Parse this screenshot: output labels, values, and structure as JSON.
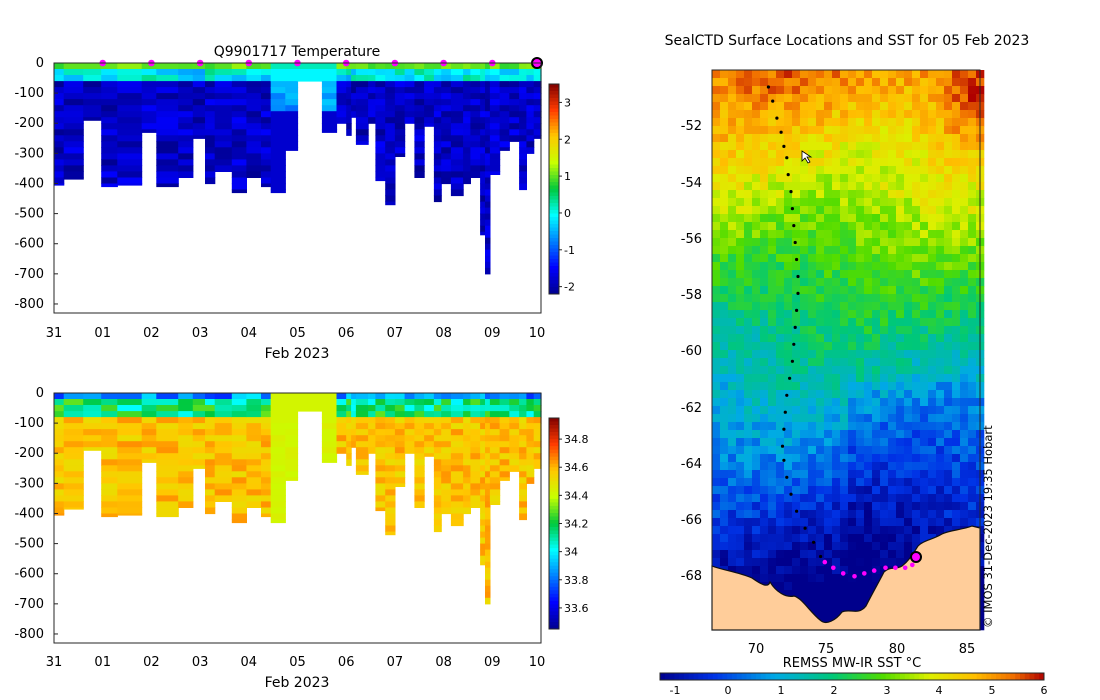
{
  "chart_data": [
    {
      "type": "heatmap",
      "name": "temperature-section",
      "title": "Q9901717  Temperature",
      "xlabel": "Feb 2023",
      "ylabel": "",
      "x_tick_labels": [
        "31",
        "01",
        "02",
        "03",
        "04",
        "05",
        "06",
        "07",
        "08",
        "09",
        "10"
      ],
      "xlim": [
        0,
        10
      ],
      "ylim": [
        -830,
        0
      ],
      "y_ticks": [
        0,
        -100,
        -200,
        -300,
        -400,
        -500,
        -600,
        -700,
        -800
      ],
      "colorbar": {
        "min": -2.2,
        "max": 3.5,
        "ticks": [
          3,
          2,
          1,
          0,
          -1,
          -2
        ]
      },
      "profile_markers_days": [
        1,
        2,
        3,
        4,
        5,
        6,
        7,
        8,
        9
      ],
      "latest_marker_day": 10
    },
    {
      "type": "heatmap",
      "name": "salinity-section",
      "title": "",
      "xlabel": "Feb 2023",
      "ylabel": "",
      "x_tick_labels": [
        "31",
        "01",
        "02",
        "03",
        "04",
        "05",
        "06",
        "07",
        "08",
        "09",
        "10"
      ],
      "xlim": [
        0,
        10
      ],
      "ylim": [
        -830,
        0
      ],
      "y_ticks": [
        0,
        -100,
        -200,
        -300,
        -400,
        -500,
        -600,
        -700,
        -800
      ],
      "colorbar": {
        "min": 33.45,
        "max": 34.95,
        "ticks": [
          34.8,
          34.6,
          34.4,
          34.2,
          34,
          33.8,
          33.6
        ]
      }
    },
    {
      "type": "heatmap",
      "name": "sst-map",
      "title": "SealCTD Surface Locations and SST for 05 Feb 2023",
      "x_tick_labels": [
        "70",
        "75",
        "80",
        "85"
      ],
      "y_tick_labels": [
        "-52",
        "-54",
        "-56",
        "-58",
        "-60",
        "-62",
        "-64",
        "-66",
        "-68"
      ],
      "lon_range": [
        67,
        86
      ],
      "lat_range": [
        -70,
        -50.2
      ],
      "colorbar_label": "REMSS MW-IR SST °C",
      "colorbar": {
        "min": -1.2,
        "max": 6,
        "ticks": [
          "-1",
          "0",
          "1",
          "2",
          "3",
          "4",
          "5",
          "6"
        ]
      },
      "side_label": "© IMOS 31-Dec-2023 19:35 Hobart",
      "track": [
        [
          71.0,
          -50.8
        ],
        [
          71.3,
          -51.3
        ],
        [
          71.6,
          -51.9
        ],
        [
          71.9,
          -52.4
        ],
        [
          72.1,
          -52.9
        ],
        [
          72.3,
          -53.3
        ],
        [
          72.4,
          -53.9
        ],
        [
          72.6,
          -54.5
        ],
        [
          72.7,
          -55.1
        ],
        [
          72.8,
          -55.7
        ],
        [
          72.9,
          -56.3
        ],
        [
          73.0,
          -56.9
        ],
        [
          73.1,
          -57.5
        ],
        [
          73.1,
          -58.1
        ],
        [
          73.0,
          -58.7
        ],
        [
          72.9,
          -59.3
        ],
        [
          72.8,
          -59.9
        ],
        [
          72.7,
          -60.5
        ],
        [
          72.5,
          -61.1
        ],
        [
          72.3,
          -61.7
        ],
        [
          72.2,
          -62.3
        ],
        [
          72.1,
          -62.9
        ],
        [
          72.0,
          -63.5
        ],
        [
          72.1,
          -64.0
        ],
        [
          72.3,
          -64.6
        ],
        [
          72.6,
          -65.2
        ],
        [
          73.0,
          -65.8
        ],
        [
          73.6,
          -66.4
        ],
        [
          74.2,
          -66.9
        ],
        [
          74.7,
          -67.4
        ]
      ],
      "recent_track": [
        [
          75.0,
          -67.6
        ],
        [
          75.6,
          -67.8
        ],
        [
          76.3,
          -68.0
        ],
        [
          77.1,
          -68.1
        ],
        [
          77.8,
          -68.0
        ],
        [
          78.5,
          -67.9
        ],
        [
          79.3,
          -67.8
        ],
        [
          80.0,
          -67.8
        ],
        [
          80.7,
          -67.8
        ],
        [
          81.2,
          -67.7
        ]
      ],
      "latest_position": [
        81.5,
        -67.4
      ]
    }
  ],
  "colors": {
    "profile_marker": "#ff00ff",
    "land": "#ffcd9a",
    "track": "#000000"
  }
}
